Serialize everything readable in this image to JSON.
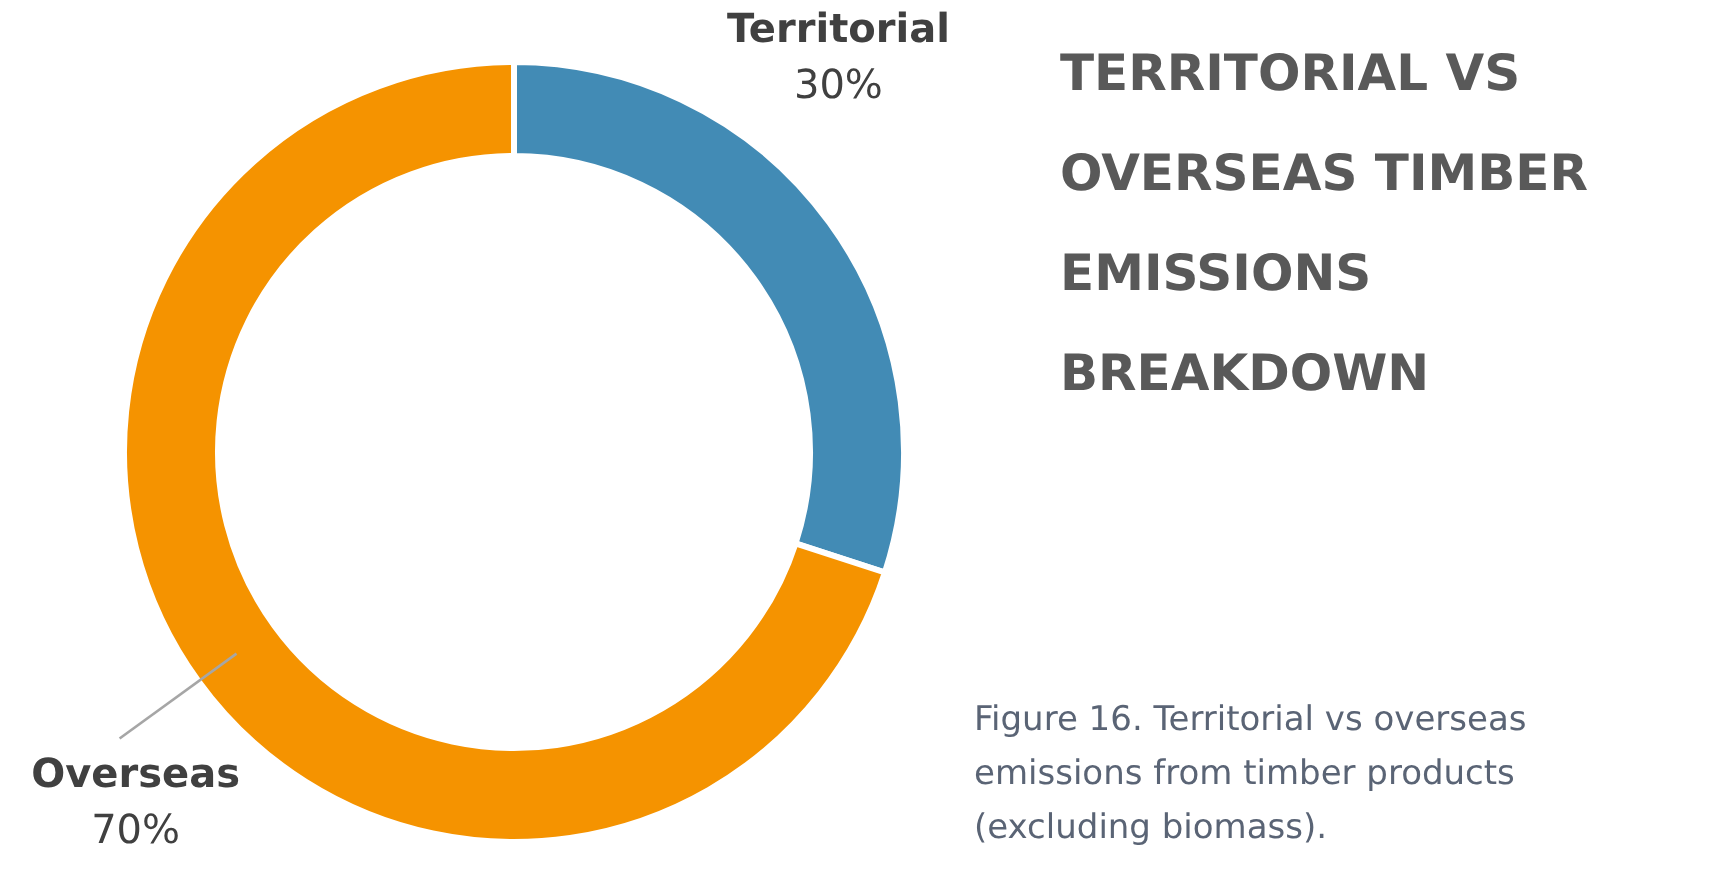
{
  "chart_data": {
    "type": "donut",
    "title": "TERRITORIAL VS OVERSEAS TIMBER EMISSIONS BREAKDOWN",
    "categories": [
      "Territorial",
      "Overseas"
    ],
    "values": [
      30,
      70
    ],
    "colors": [
      "#428bb5",
      "#f59300"
    ],
    "value_labels": [
      "30%",
      "70%"
    ],
    "annotations": [
      "Figure 16. Territorial vs overseas emissions from timber products (excluding biomass)."
    ]
  }
}
